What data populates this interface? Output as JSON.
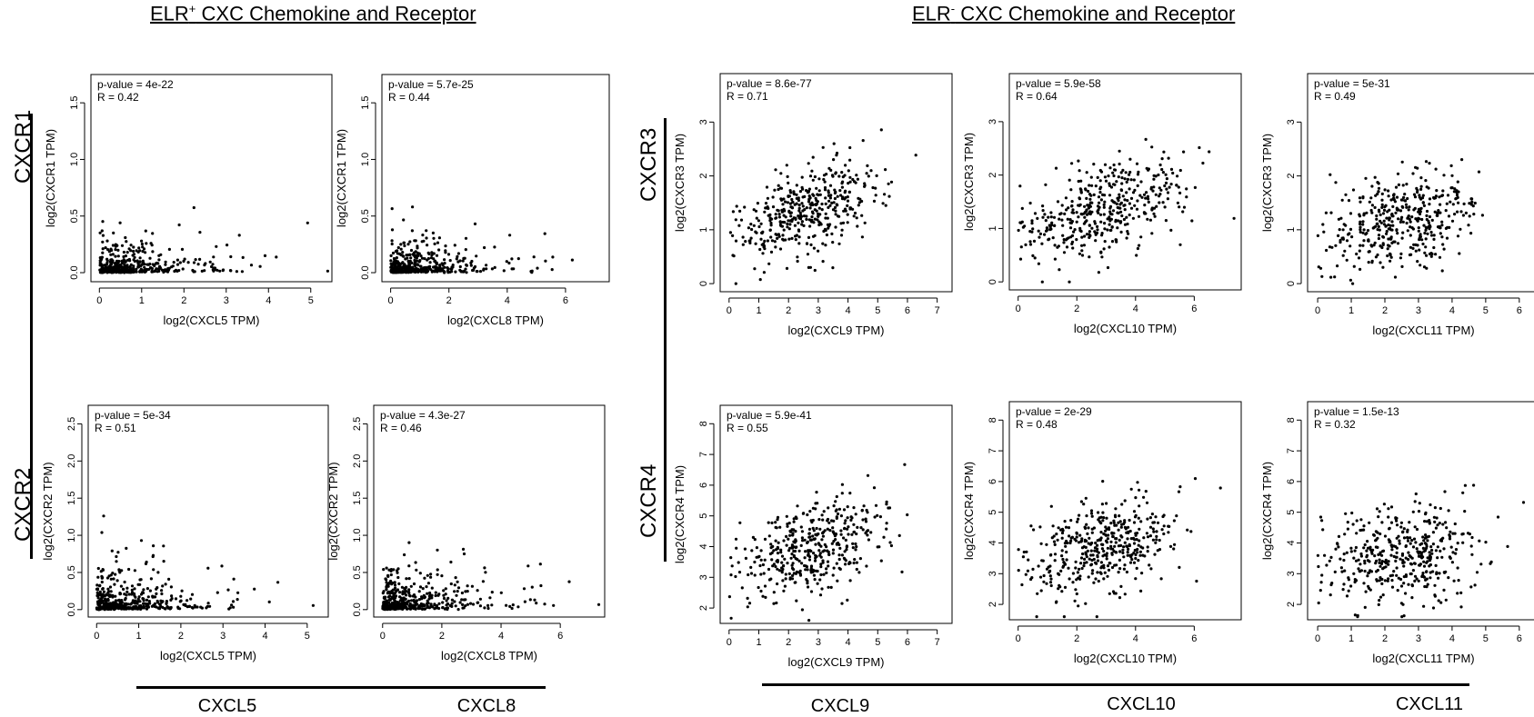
{
  "headings": {
    "left": {
      "prefix": "ELR",
      "sup": "+",
      "rest": " CXC Chemokine and Receptor"
    },
    "right": {
      "prefix": "ELR",
      "sup": "-",
      "rest": " CXC Chemokine and Receptor"
    }
  },
  "row_labels": {
    "cxcr1": "CXCR1",
    "cxcr2": "CXCR2",
    "cxcr3": "CXCR3",
    "cxcr4": "CXCR4"
  },
  "column_labels": {
    "cxcl5": "CXCL5",
    "cxcl8": "CXCL8",
    "cxcl9": "CXCL9",
    "cxcl10": "CXCL10",
    "cxcl11": "CXCL11"
  },
  "chart_data": [
    {
      "id": "cxcr1-cxcl5",
      "type": "scatter",
      "xlabel": "log2(CXCL5 TPM)",
      "ylabel": "log2(CXCR1 TPM)",
      "pvalue_text": "p-value = 4e-22",
      "r_text": "R = 0.42",
      "xlim": [
        -0.2,
        5.5
      ],
      "ylim": [
        -0.08,
        1.75
      ],
      "xticks": [
        0,
        1,
        2,
        3,
        4,
        5
      ],
      "yticks": [
        0.0,
        0.5,
        1.0,
        1.5
      ],
      "n": 420,
      "r": 0.42,
      "xmax": 5.4,
      "ymax": 1.26,
      "seed": 11,
      "kind": "zero"
    },
    {
      "id": "cxcr1-cxcl8",
      "type": "scatter",
      "xlabel": "log2(CXCL8 TPM)",
      "ylabel": "log2(CXCR1 TPM)",
      "pvalue_text": "p-value = 5.7e-25",
      "r_text": "R = 0.44",
      "xlim": [
        -0.3,
        7.5
      ],
      "ylim": [
        -0.08,
        1.75
      ],
      "xticks": [
        0,
        2,
        4,
        6
      ],
      "yticks": [
        0.0,
        0.5,
        1.0,
        1.5
      ],
      "n": 420,
      "r": 0.44,
      "xmax": 7.3,
      "ymax": 1.26,
      "seed": 23,
      "kind": "zero"
    },
    {
      "id": "cxcr2-cxcl5",
      "type": "scatter",
      "xlabel": "log2(CXCL5 TPM)",
      "ylabel": "log2(CXCR2 TPM)",
      "pvalue_text": "p-value = 5e-34",
      "r_text": "R = 0.51",
      "xlim": [
        -0.2,
        5.5
      ],
      "ylim": [
        -0.1,
        2.75
      ],
      "xticks": [
        0,
        1,
        2,
        3,
        4,
        5
      ],
      "yticks": [
        0.0,
        0.5,
        1.0,
        1.5,
        2.0,
        2.5
      ],
      "n": 420,
      "r": 0.51,
      "xmax": 5.4,
      "ymax": 2.62,
      "seed": 37,
      "kind": "zero"
    },
    {
      "id": "cxcr2-cxcl8",
      "type": "scatter",
      "xlabel": "log2(CXCL8 TPM)",
      "ylabel": "log2(CXCR2 TPM)",
      "pvalue_text": "p-value = 4.3e-27",
      "r_text": "R = 0.46",
      "xlim": [
        -0.3,
        7.5
      ],
      "ylim": [
        -0.1,
        2.75
      ],
      "xticks": [
        0,
        2,
        4,
        6
      ],
      "yticks": [
        0.0,
        0.5,
        1.0,
        1.5,
        2.0,
        2.5
      ],
      "n": 420,
      "r": 0.46,
      "xmax": 7.3,
      "ymax": 2.62,
      "seed": 41,
      "kind": "zero"
    },
    {
      "id": "cxcr3-cxcl9",
      "type": "scatter",
      "xlabel": "log2(CXCL9 TPM)",
      "ylabel": "log2(CXCR3 TPM)",
      "pvalue_text": "p-value = 8.6e-77",
      "r_text": "R = 0.71",
      "xlim": [
        -0.3,
        7.5
      ],
      "ylim": [
        -0.15,
        3.9
      ],
      "xticks": [
        0,
        1,
        2,
        3,
        4,
        5,
        6,
        7
      ],
      "yticks": [
        0,
        1,
        2,
        3
      ],
      "n": 420,
      "r": 0.71,
      "xmax": 7.2,
      "ymax": 3.75,
      "seed": 53,
      "kind": "linear"
    },
    {
      "id": "cxcr3-cxcl10",
      "type": "scatter",
      "xlabel": "log2(CXCL10 TPM)",
      "ylabel": "log2(CXCR3 TPM)",
      "pvalue_text": "p-value = 5.9e-58",
      "r_text": "R = 0.64",
      "xlim": [
        -0.3,
        7.6
      ],
      "ylim": [
        -0.15,
        3.9
      ],
      "xticks": [
        0,
        2,
        4,
        6
      ],
      "yticks": [
        0,
        1,
        2,
        3
      ],
      "n": 420,
      "r": 0.64,
      "xmax": 7.4,
      "ymax": 3.75,
      "seed": 67,
      "kind": "linear"
    },
    {
      "id": "cxcr3-cxcl11",
      "type": "scatter",
      "xlabel": "log2(CXCL11 TPM)",
      "ylabel": "log2(CXCR3 TPM)",
      "pvalue_text": "p-value = 5e-31",
      "r_text": "R = 0.49",
      "xlim": [
        -0.3,
        6.6
      ],
      "ylim": [
        -0.15,
        3.9
      ],
      "xticks": [
        0,
        1,
        2,
        3,
        4,
        5,
        6
      ],
      "yticks": [
        0,
        1,
        2,
        3
      ],
      "n": 420,
      "r": 0.49,
      "xmax": 6.4,
      "ymax": 3.75,
      "seed": 79,
      "kind": "linear"
    },
    {
      "id": "cxcr4-cxcl9",
      "type": "scatter",
      "xlabel": "log2(CXCL9 TPM)",
      "ylabel": "log2(CXCR4 TPM)",
      "pvalue_text": "p-value = 5.9e-41",
      "r_text": "R = 0.55",
      "xlim": [
        -0.3,
        7.5
      ],
      "ylim": [
        1.5,
        8.6
      ],
      "xticks": [
        0,
        1,
        2,
        3,
        4,
        5,
        6,
        7
      ],
      "yticks": [
        2,
        3,
        4,
        5,
        6,
        7,
        8
      ],
      "n": 420,
      "r": 0.55,
      "xmax": 7.2,
      "ymax": 8.4,
      "seed": 83,
      "kind": "linear"
    },
    {
      "id": "cxcr4-cxcl10",
      "type": "scatter",
      "xlabel": "log2(CXCL10 TPM)",
      "ylabel": "log2(CXCR4 TPM)",
      "pvalue_text": "p-value = 2e-29",
      "r_text": "R = 0.48",
      "xlim": [
        -0.3,
        7.6
      ],
      "ylim": [
        1.5,
        8.6
      ],
      "xticks": [
        0,
        2,
        4,
        6
      ],
      "yticks": [
        2,
        3,
        4,
        5,
        6,
        7,
        8
      ],
      "n": 420,
      "r": 0.48,
      "xmax": 7.4,
      "ymax": 8.4,
      "seed": 97,
      "kind": "linear"
    },
    {
      "id": "cxcr4-cxcl11",
      "type": "scatter",
      "xlabel": "log2(CXCL11 TPM)",
      "ylabel": "log2(CXCR4 TPM)",
      "pvalue_text": "p-value = 1.5e-13",
      "r_text": "R = 0.32",
      "xlim": [
        -0.3,
        6.6
      ],
      "ylim": [
        1.5,
        8.6
      ],
      "xticks": [
        0,
        1,
        2,
        3,
        4,
        5,
        6
      ],
      "yticks": [
        2,
        3,
        4,
        5,
        6,
        7,
        8
      ],
      "n": 420,
      "r": 0.32,
      "xmax": 6.4,
      "ymax": 8.4,
      "seed": 101,
      "kind": "linear"
    }
  ]
}
